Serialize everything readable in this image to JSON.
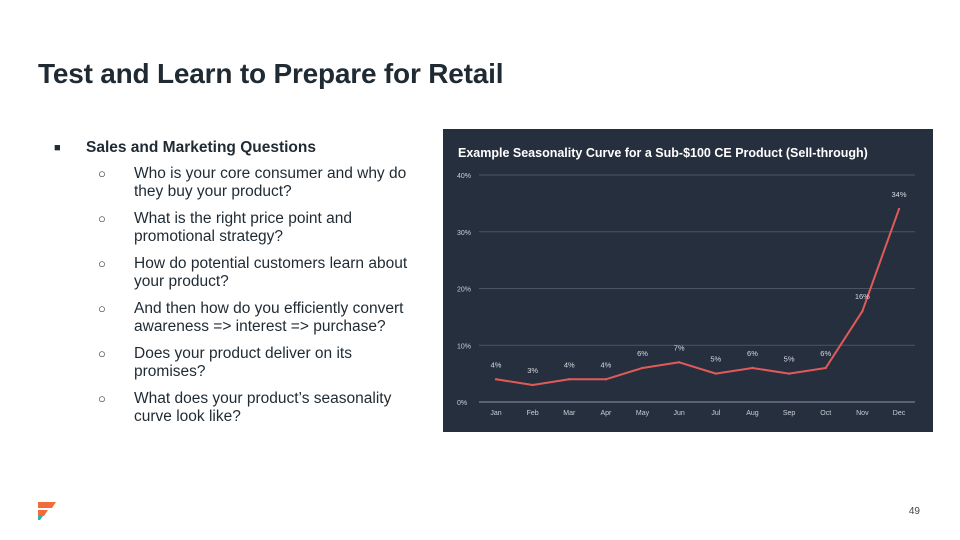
{
  "slide": {
    "title": "Test and Learn to Prepare for Retail",
    "page_number": "49"
  },
  "bullets": {
    "heading": "Sales and Marketing Questions",
    "heading_marker": "■",
    "sub_marker": "○",
    "items": [
      "Who is your core consumer and why do they buy your product?",
      "What is the right price point and promotional strategy?",
      "How do potential customers learn about your product?",
      "And then how do you efficiently convert awareness => interest => purchase?",
      "Does your product deliver on its promises?",
      "What does your product’s seasonality curve look like?"
    ]
  },
  "colors": {
    "chart_bg": "#262f3d",
    "line": "#e05a5a",
    "grid": "#4a5566",
    "axis_text": "#c9cfd8",
    "label_text": "#d6dbe2",
    "logo_orange": "#f26b3a",
    "logo_teal": "#2bb3a3"
  },
  "chart_data": {
    "type": "line",
    "title": "Example Seasonality Curve for a Sub-$100 CE Product (Sell-through)",
    "categories": [
      "Jan",
      "Feb",
      "Mar",
      "Apr",
      "May",
      "Jun",
      "Jul",
      "Aug",
      "Sep",
      "Oct",
      "Nov",
      "Dec"
    ],
    "values": [
      4,
      3,
      4,
      4,
      6,
      7,
      5,
      6,
      5,
      6,
      16,
      34
    ],
    "data_labels": [
      "4%",
      "3%",
      "4%",
      "4%",
      "6%",
      "7%",
      "5%",
      "6%",
      "5%",
      "6%",
      "16%",
      "34%"
    ],
    "ylim": [
      0,
      40
    ],
    "yticks": [
      0,
      10,
      20,
      30,
      40
    ],
    "ytick_labels": [
      "0%",
      "10%",
      "20%",
      "30%",
      "40%"
    ],
    "grid": true,
    "xlabel": "",
    "ylabel": ""
  }
}
